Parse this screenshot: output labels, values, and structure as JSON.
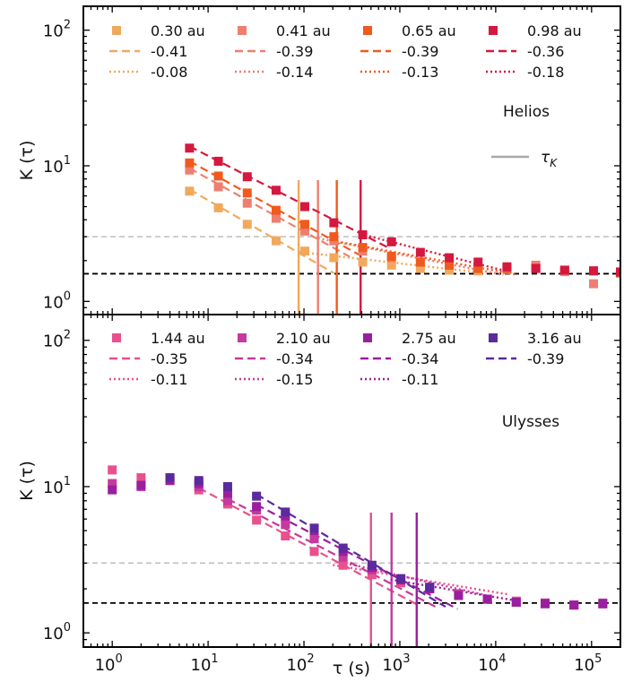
{
  "figure": {
    "xlabel": "τ (s)",
    "ylabel": "K (τ)"
  },
  "chart_data": [
    {
      "type": "scatter",
      "panel_label": "Helios",
      "x_scale": "log",
      "y_scale": "log",
      "xlim": [
        0.5,
        200000
      ],
      "ylim": [
        0.8,
        150
      ],
      "ylabel": "K (τ)",
      "x_tick_labels": [
        "10^0",
        "10^1",
        "10^2",
        "10^3",
        "10^4",
        "10^5"
      ],
      "y_tick_labels": [
        "10^0",
        "10^1",
        "10^2"
      ],
      "reference_lines": [
        {
          "y": 1.6,
          "style": "dashed",
          "color": "#000000"
        },
        {
          "y": 3.0,
          "style": "dashed",
          "color": "#bdbdbd"
        }
      ],
      "legend_extra": {
        "label": "τ_K",
        "color": "#a8a8a8"
      },
      "series": [
        {
          "name": "0.30 au",
          "color": "#f0a95c",
          "x": [
            6.4,
            12.8,
            25.6,
            51.2,
            102,
            205,
            410,
            819,
            1638,
            3277,
            6554
          ],
          "y": [
            6.5,
            4.9,
            3.7,
            2.8,
            2.35,
            2.1,
            1.95,
            1.85,
            1.75,
            1.7,
            1.68
          ],
          "tau_k": 88,
          "fit_dashed": {
            "label": "-0.41",
            "x": [
              6.4,
              205
            ]
          },
          "fit_dotted": {
            "label": "-0.08",
            "x": [
              88,
              8000
            ]
          }
        },
        {
          "name": "0.41 au",
          "color": "#ee7f70",
          "x": [
            6.4,
            12.8,
            25.6,
            51.2,
            102,
            205,
            410,
            819,
            1638,
            3277,
            6554,
            13107,
            26214,
            52429,
            104858,
            200000
          ],
          "y": [
            9.3,
            7.0,
            5.3,
            4.1,
            3.3,
            2.8,
            2.35,
            2.1,
            1.95,
            1.85,
            1.75,
            1.72,
            1.85,
            1.66,
            1.35,
            1.62
          ],
          "tau_k": 140,
          "fit_dashed": {
            "label": "-0.39",
            "x": [
              6.4,
              300
            ]
          },
          "fit_dotted": {
            "label": "-0.14",
            "x": [
              140,
              12000
            ]
          }
        },
        {
          "name": "0.65 au",
          "color": "#f05a1e",
          "x": [
            6.4,
            12.8,
            25.6,
            51.2,
            102,
            205,
            410,
            819,
            1638,
            3277,
            6554,
            13107,
            26214,
            52429,
            104858,
            200000
          ],
          "y": [
            10.5,
            8.4,
            6.3,
            4.7,
            3.7,
            3.0,
            2.5,
            2.15,
            1.95,
            1.85,
            1.75,
            1.75,
            1.75,
            1.7,
            1.68,
            1.62
          ],
          "tau_k": 220,
          "fit_dashed": {
            "label": "-0.39",
            "x": [
              6.4,
              450
            ]
          },
          "fit_dotted": {
            "label": "-0.13",
            "x": [
              220,
              16000
            ]
          }
        },
        {
          "name": "0.98 au",
          "color": "#d4183f",
          "x": [
            6.4,
            12.8,
            25.6,
            51.2,
            102,
            205,
            410,
            819,
            1638,
            3277,
            6554,
            13107,
            26214,
            52429,
            104858,
            200000
          ],
          "y": [
            13.5,
            10.8,
            8.3,
            6.6,
            5.0,
            3.8,
            3.1,
            2.75,
            2.3,
            2.1,
            1.95,
            1.8,
            1.75,
            1.7,
            1.68,
            1.65
          ],
          "tau_k": 390,
          "fit_dashed": {
            "label": "-0.36",
            "x": [
              6.4,
              800
            ]
          },
          "fit_dotted": {
            "label": "-0.18",
            "x": [
              390,
              13000
            ]
          }
        }
      ]
    },
    {
      "type": "scatter",
      "panel_label": "Ulysses",
      "x_scale": "log",
      "y_scale": "log",
      "xlim": [
        0.5,
        200000
      ],
      "ylim": [
        0.8,
        150
      ],
      "xlabel": "τ (s)",
      "ylabel": "K (τ)",
      "x_tick_labels": [
        "10^0",
        "10^1",
        "10^2",
        "10^3",
        "10^4",
        "10^5"
      ],
      "y_tick_labels": [
        "10^0",
        "10^1",
        "10^2"
      ],
      "reference_lines": [
        {
          "y": 1.6,
          "style": "dashed",
          "color": "#000000"
        },
        {
          "y": 3.0,
          "style": "dashed",
          "color": "#bdbdbd"
        }
      ],
      "series": [
        {
          "name": "1.44 au",
          "color": "#e8508e",
          "x": [
            1,
            2,
            4,
            8,
            16,
            32,
            64,
            128,
            256,
            512,
            1024,
            2048,
            4096,
            8192,
            16384,
            32768,
            65536,
            131072
          ],
          "y": [
            13.0,
            11.5,
            11.0,
            9.5,
            7.6,
            5.9,
            4.6,
            3.6,
            2.9,
            2.5,
            2.2,
            2.0,
            1.85,
            1.7,
            1.65,
            1.6,
            1.55,
            1.58
          ],
          "tau_k": 500,
          "fit_dashed": {
            "label": "-0.35",
            "x": [
              8,
              1500
            ]
          },
          "fit_dotted": {
            "label": "-0.11",
            "x": [
              200,
              14000
            ]
          }
        },
        {
          "name": "2.10 au",
          "color": "#c43a9e",
          "x": [
            1,
            2,
            4,
            8,
            16,
            32,
            64,
            128,
            256,
            512,
            1024,
            2048,
            4096,
            8192,
            16384,
            32768,
            65536,
            131072
          ],
          "y": [
            10.5,
            10.0,
            11.5,
            10.0,
            8.0,
            6.9,
            5.5,
            4.4,
            3.3,
            2.7,
            2.3,
            2.05,
            1.85,
            1.7,
            1.62,
            1.6,
            1.55,
            1.6
          ],
          "tau_k": 820,
          "fit_dashed": {
            "label": "-0.34",
            "x": [
              16,
              2500
            ]
          },
          "fit_dotted": {
            "label": "-0.15",
            "x": [
              300,
              8000
            ]
          }
        },
        {
          "name": "2.75 au",
          "color": "#9a1f9e",
          "x": [
            1,
            2,
            4,
            8,
            16,
            32,
            64,
            128,
            256,
            512,
            1024,
            2048,
            4096,
            8192,
            16384,
            32768,
            65536,
            131072
          ],
          "y": [
            9.5,
            10.2,
            11.0,
            10.5,
            9.0,
            7.3,
            6.3,
            5.0,
            3.6,
            2.8,
            2.3,
            2.0,
            1.8,
            1.7,
            1.62,
            1.58,
            1.55,
            1.58
          ],
          "tau_k": 1500,
          "fit_dashed": {
            "label": "-0.34",
            "x": [
              32,
              4000
            ]
          },
          "fit_dotted": {
            "label": "-0.11",
            "x": [
              800,
              16000
            ]
          }
        },
        {
          "name": "3.16 au",
          "color": "#5b2a9c",
          "x": [
            4,
            8,
            16,
            32,
            64,
            128,
            256,
            512,
            1024,
            2048
          ],
          "y": [
            11.5,
            11.0,
            10.0,
            8.6,
            6.7,
            5.2,
            3.8,
            2.9,
            2.35,
            2.05
          ],
          "fit_dashed": {
            "label": "-0.39",
            "x": [
              32,
              3000
            ]
          }
        }
      ]
    }
  ]
}
